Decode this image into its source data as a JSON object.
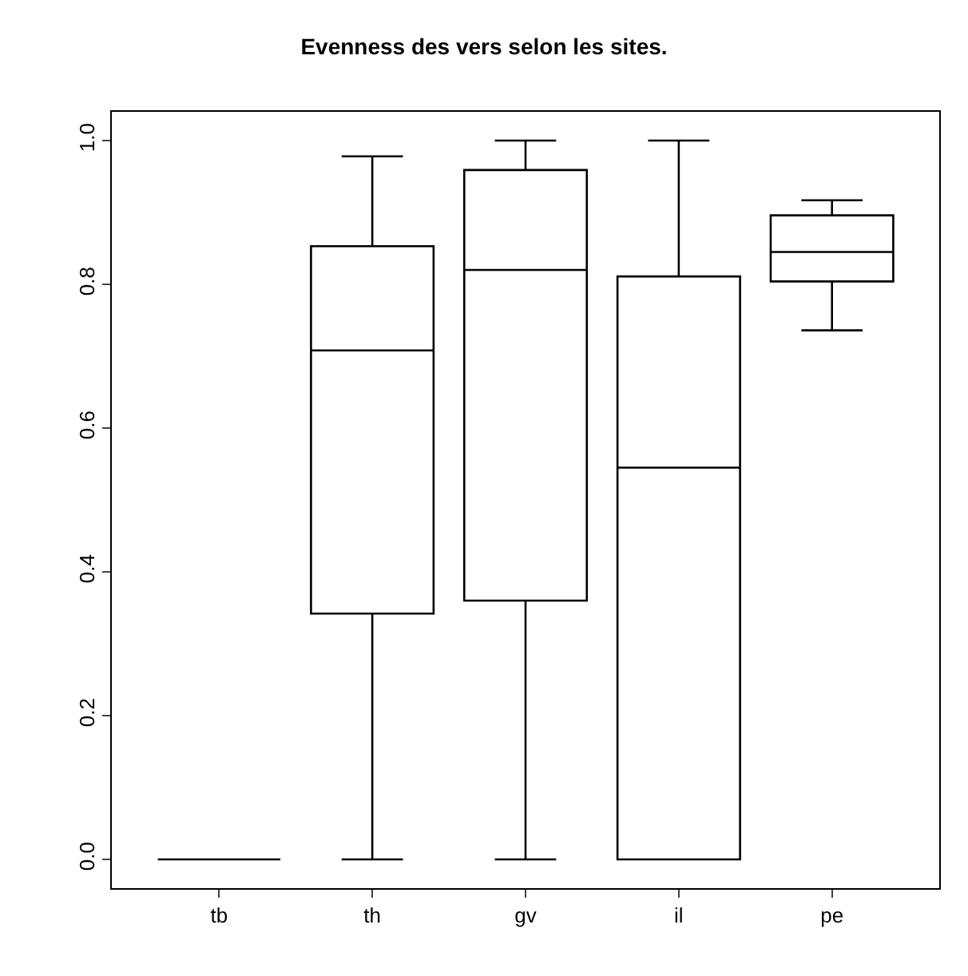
{
  "chart_data": {
    "type": "box",
    "title": "Evenness des vers selon les sites.",
    "categories": [
      "tb",
      "th",
      "gv",
      "il",
      "pe"
    ],
    "boxes": [
      {
        "low": 0,
        "q1": 0,
        "median": 0,
        "q3": 0,
        "high": 0
      },
      {
        "low": 0,
        "q1": 0.342,
        "median": 0.708,
        "q3": 0.853,
        "high": 0.978
      },
      {
        "low": 0,
        "q1": 0.36,
        "median": 0.82,
        "q3": 0.959,
        "high": 1.0
      },
      {
        "low": 0,
        "q1": 0,
        "median": 0.545,
        "q3": 0.811,
        "high": 1.0
      },
      {
        "low": 0.736,
        "q1": 0.804,
        "median": 0.845,
        "q3": 0.896,
        "high": 0.917
      }
    ],
    "color": "#000000",
    "ylim": [
      -0.04,
      1.04
    ],
    "yticks": [
      {
        "value": 0,
        "label": "0.0"
      },
      {
        "value": 0.2,
        "label": "0.2"
      },
      {
        "value": 0.4,
        "label": "0.4"
      },
      {
        "value": 0.6,
        "label": "0.6"
      },
      {
        "value": 0.8,
        "label": "0.8"
      },
      {
        "value": 1.0,
        "label": "1.0"
      }
    ]
  }
}
